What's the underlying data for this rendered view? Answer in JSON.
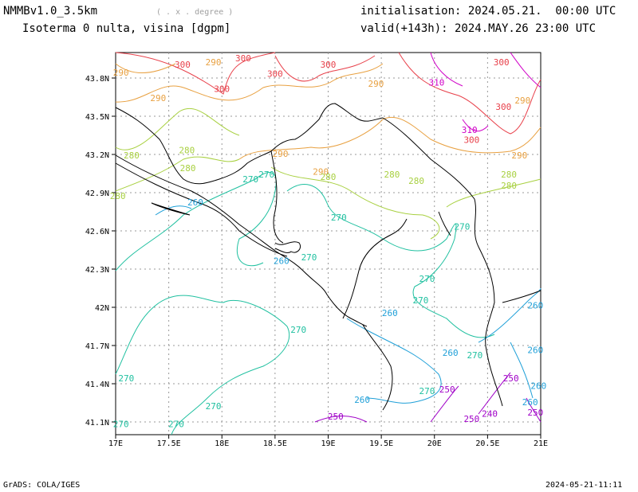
{
  "header": {
    "model": "NMMBv1.0_3.5km",
    "units_note": "( . x . degree )",
    "title": "Isoterma 0 nulta, visina [dgpm]",
    "init": "initialisation: 2024.05.21.  00:00 UTC",
    "valid": "valid(+143h): 2024.MAY.26 23:00 UTC"
  },
  "footer": {
    "credit": "GrADS: COLA/IGES",
    "timestamp": "2024-05-21-11:11"
  },
  "map": {
    "lon_ticks": [
      "17E",
      "17.5E",
      "18E",
      "18.5E",
      "19E",
      "19.5E",
      "20E",
      "20.5E",
      "21E"
    ],
    "lat_ticks": [
      "41.1N",
      "41.4N",
      "41.7N",
      "42N",
      "42.3N",
      "42.6N",
      "42.9N",
      "43.2N",
      "43.5N",
      "43.8N"
    ],
    "contour_colors": {
      "310": "#d000c8",
      "300": "#e8404a",
      "290": "#e8a040",
      "280": "#a8d040",
      "270": "#20c0a0",
      "260": "#20a0d8",
      "250": "#a000c8",
      "240": "#a000c8"
    },
    "contour_labels": [
      {
        "t": "300",
        "lon": 17.63,
        "lat": 43.88
      },
      {
        "t": "290",
        "lon": 17.92,
        "lat": 43.9
      },
      {
        "t": "300",
        "lon": 18.2,
        "lat": 43.93
      },
      {
        "t": "300",
        "lon": 19.0,
        "lat": 43.88
      },
      {
        "t": "300",
        "lon": 18.5,
        "lat": 43.81
      },
      {
        "t": "300",
        "lon": 18.0,
        "lat": 43.69
      },
      {
        "t": "310",
        "lon": 20.02,
        "lat": 43.74
      },
      {
        "t": "300",
        "lon": 20.63,
        "lat": 43.9
      },
      {
        "t": "300",
        "lon": 20.65,
        "lat": 43.55
      },
      {
        "t": "310",
        "lon": 20.33,
        "lat": 43.37
      },
      {
        "t": "300",
        "lon": 20.35,
        "lat": 43.29
      },
      {
        "t": "290",
        "lon": 20.83,
        "lat": 43.6
      },
      {
        "t": "290",
        "lon": 17.05,
        "lat": 43.82
      },
      {
        "t": "290",
        "lon": 17.4,
        "lat": 43.62
      },
      {
        "t": "290",
        "lon": 19.45,
        "lat": 43.73
      },
      {
        "t": "290",
        "lon": 18.55,
        "lat": 43.18
      },
      {
        "t": "290",
        "lon": 18.93,
        "lat": 43.04
      },
      {
        "t": "290",
        "lon": 20.8,
        "lat": 43.17
      },
      {
        "t": "280",
        "lon": 17.15,
        "lat": 43.17
      },
      {
        "t": "280",
        "lon": 17.67,
        "lat": 43.21
      },
      {
        "t": "280",
        "lon": 17.68,
        "lat": 43.07
      },
      {
        "t": "280",
        "lon": 19.0,
        "lat": 43.0
      },
      {
        "t": "280",
        "lon": 19.6,
        "lat": 43.02
      },
      {
        "t": "280",
        "lon": 19.83,
        "lat": 42.97
      },
      {
        "t": "280",
        "lon": 20.7,
        "lat": 43.02
      },
      {
        "t": "280",
        "lon": 20.7,
        "lat": 42.93
      },
      {
        "t": "280",
        "lon": 17.02,
        "lat": 42.85
      },
      {
        "t": "270",
        "lon": 18.27,
        "lat": 42.98
      },
      {
        "t": "270",
        "lon": 18.42,
        "lat": 43.02
      },
      {
        "t": "270",
        "lon": 19.1,
        "lat": 42.68
      },
      {
        "t": "270",
        "lon": 18.82,
        "lat": 42.37
      },
      {
        "t": "270",
        "lon": 20.26,
        "lat": 42.61
      },
      {
        "t": "270",
        "lon": 19.93,
        "lat": 42.2
      },
      {
        "t": "270",
        "lon": 19.87,
        "lat": 42.03
      },
      {
        "t": "270",
        "lon": 18.72,
        "lat": 41.8
      },
      {
        "t": "270",
        "lon": 20.38,
        "lat": 41.6
      },
      {
        "t": "270",
        "lon": 19.93,
        "lat": 41.32
      },
      {
        "t": "270",
        "lon": 17.1,
        "lat": 41.42
      },
      {
        "t": "270",
        "lon": 17.92,
        "lat": 41.2
      },
      {
        "t": "270",
        "lon": 17.57,
        "lat": 41.06
      },
      {
        "t": "270",
        "lon": 17.05,
        "lat": 41.06
      },
      {
        "t": "260",
        "lon": 17.75,
        "lat": 42.8
      },
      {
        "t": "260",
        "lon": 18.56,
        "lat": 42.34
      },
      {
        "t": "260",
        "lon": 19.58,
        "lat": 41.93
      },
      {
        "t": "260",
        "lon": 20.15,
        "lat": 41.62
      },
      {
        "t": "260",
        "lon": 20.95,
        "lat": 41.99
      },
      {
        "t": "260",
        "lon": 20.95,
        "lat": 41.64
      },
      {
        "t": "260",
        "lon": 20.98,
        "lat": 41.36
      },
      {
        "t": "260",
        "lon": 20.9,
        "lat": 41.23
      },
      {
        "t": "260",
        "lon": 19.32,
        "lat": 41.25
      },
      {
        "t": "250",
        "lon": 20.12,
        "lat": 41.33
      },
      {
        "t": "250",
        "lon": 20.72,
        "lat": 41.42
      },
      {
        "t": "250",
        "lon": 20.95,
        "lat": 41.15
      },
      {
        "t": "250",
        "lon": 19.07,
        "lat": 41.12
      },
      {
        "t": "240",
        "lon": 20.52,
        "lat": 41.14
      },
      {
        "t": "250",
        "lon": 20.35,
        "lat": 41.1
      }
    ]
  }
}
